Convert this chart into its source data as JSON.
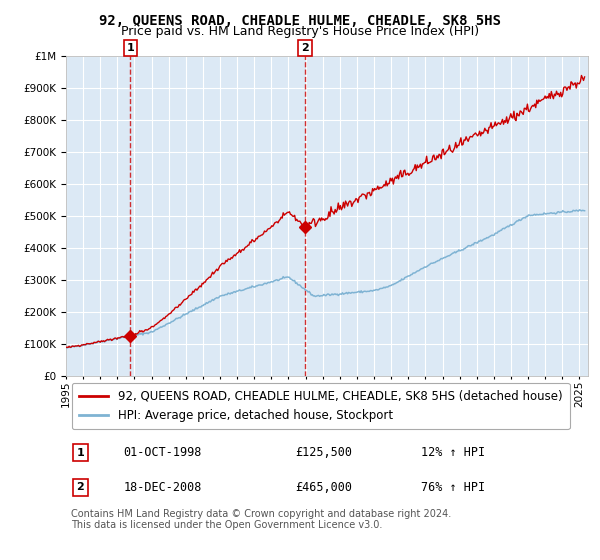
{
  "title": "92, QUEENS ROAD, CHEADLE HULME, CHEADLE, SK8 5HS",
  "subtitle": "Price paid vs. HM Land Registry's House Price Index (HPI)",
  "ylim": [
    0,
    1000000
  ],
  "yticks": [
    0,
    100000,
    200000,
    300000,
    400000,
    500000,
    600000,
    700000,
    800000,
    900000,
    1000000
  ],
  "ytick_labels": [
    "£0",
    "£100K",
    "£200K",
    "£300K",
    "£400K",
    "£500K",
    "£600K",
    "£700K",
    "£800K",
    "£900K",
    "£1M"
  ],
  "xlim_start": 1995.0,
  "xlim_end": 2025.5,
  "xtick_years": [
    1995,
    1996,
    1997,
    1998,
    1999,
    2000,
    2001,
    2002,
    2003,
    2004,
    2005,
    2006,
    2007,
    2008,
    2009,
    2010,
    2011,
    2012,
    2013,
    2014,
    2015,
    2016,
    2017,
    2018,
    2019,
    2020,
    2021,
    2022,
    2023,
    2024,
    2025
  ],
  "background_color": "#ffffff",
  "plot_bg_color": "#dce9f5",
  "grid_color": "#ffffff",
  "red_line_color": "#cc0000",
  "blue_line_color": "#7fb3d3",
  "vline_color": "#cc0000",
  "marker1_x": 1998.75,
  "marker1_y": 125500,
  "marker2_x": 2008.96,
  "marker2_y": 465000,
  "sale1_label": "1",
  "sale2_label": "2",
  "sale1_date": "01-OCT-1998",
  "sale1_price": "£125,500",
  "sale1_hpi": "12% ↑ HPI",
  "sale2_date": "18-DEC-2008",
  "sale2_price": "£465,000",
  "sale2_hpi": "76% ↑ HPI",
  "legend1_label": "92, QUEENS ROAD, CHEADLE HULME, CHEADLE, SK8 5HS (detached house)",
  "legend2_label": "HPI: Average price, detached house, Stockport",
  "footnote": "Contains HM Land Registry data © Crown copyright and database right 2024.\nThis data is licensed under the Open Government Licence v3.0.",
  "title_fontsize": 10,
  "subtitle_fontsize": 9,
  "tick_fontsize": 7.5,
  "legend_fontsize": 8.5,
  "footnote_fontsize": 7
}
